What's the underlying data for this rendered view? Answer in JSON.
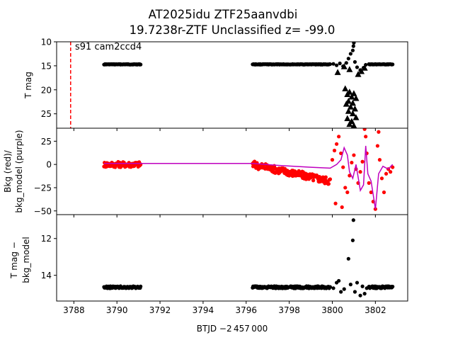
{
  "figure": {
    "title_line1": "AT2025idu  ZTF25aanvdbi",
    "title_line2": "19.7238r-ZTF Unclassified z= -99.0"
  },
  "chart_data": [
    {
      "type": "scatter",
      "panel": "top",
      "ylabel": "T mag",
      "y_inverted": true,
      "xlim": [
        3787.2,
        3803.5
      ],
      "ylim": [
        28,
        10
      ],
      "yticks": [
        "10",
        "15",
        "20",
        "25"
      ],
      "annotation": "s91 cam2ccd4",
      "vline": {
        "x": 3787.85,
        "color": "#ff0000",
        "style": "dashed"
      },
      "series": [
        {
          "marker": "circle",
          "color": "#000000",
          "segments": [
            {
              "x_start": 3789.4,
              "x_end": 3791.1,
              "y": 14.7
            },
            {
              "x_start": 3796.3,
              "x_end": 3799.9,
              "y": 14.7
            },
            {
              "x_start": 3801.7,
              "x_end": 3802.8,
              "y": 14.7
            }
          ],
          "points": [
            {
              "x": 3800.05,
              "y": 14.6
            },
            {
              "x": 3800.2,
              "y": 14.9
            },
            {
              "x": 3800.35,
              "y": 14.5
            },
            {
              "x": 3800.5,
              "y": 15.1
            },
            {
              "x": 3800.65,
              "y": 14.4
            },
            {
              "x": 3800.75,
              "y": 13.5
            },
            {
              "x": 3800.85,
              "y": 12.5
            },
            {
              "x": 3800.95,
              "y": 11.8
            },
            {
              "x": 3800.98,
              "y": 10.9
            },
            {
              "x": 3801.0,
              "y": 10.2
            },
            {
              "x": 3801.05,
              "y": 14.2
            },
            {
              "x": 3801.15,
              "y": 15.3
            },
            {
              "x": 3801.3,
              "y": 15.9
            },
            {
              "x": 3801.45,
              "y": 15.4
            },
            {
              "x": 3801.55,
              "y": 14.8
            }
          ]
        },
        {
          "marker": "triangle",
          "color": "#000000",
          "points": [
            {
              "x": 3800.25,
              "y": 16.4
            },
            {
              "x": 3800.55,
              "y": 15.2
            },
            {
              "x": 3800.8,
              "y": 15.8
            },
            {
              "x": 3801.2,
              "y": 16.8
            },
            {
              "x": 3801.35,
              "y": 16.2
            },
            {
              "x": 3801.5,
              "y": 15.5
            },
            {
              "x": 3800.6,
              "y": 19.8
            },
            {
              "x": 3800.7,
              "y": 21.0
            },
            {
              "x": 3800.8,
              "y": 20.5
            },
            {
              "x": 3800.9,
              "y": 21.5
            },
            {
              "x": 3801.0,
              "y": 20.8
            },
            {
              "x": 3801.1,
              "y": 21.8
            },
            {
              "x": 3800.65,
              "y": 23.0
            },
            {
              "x": 3800.75,
              "y": 24.5
            },
            {
              "x": 3800.85,
              "y": 23.6
            },
            {
              "x": 3800.95,
              "y": 25.0
            },
            {
              "x": 3801.05,
              "y": 24.0
            },
            {
              "x": 3800.7,
              "y": 26.0
            },
            {
              "x": 3800.8,
              "y": 27.2
            },
            {
              "x": 3800.9,
              "y": 26.6
            },
            {
              "x": 3801.0,
              "y": 27.5
            },
            {
              "x": 3800.75,
              "y": 22.4
            },
            {
              "x": 3800.95,
              "y": 22.8
            },
            {
              "x": 3801.1,
              "y": 25.8
            }
          ]
        }
      ]
    },
    {
      "type": "scatter",
      "panel": "middle",
      "ylabel_line1": "Bkg (red)/",
      "ylabel_line2": "bkg_model (purple)",
      "xlim": [
        3787.2,
        3803.5
      ],
      "ylim": [
        -54,
        39
      ],
      "yticks": [
        "25",
        "0",
        "−25",
        "−50"
      ],
      "series": [
        {
          "name": "Bkg",
          "marker": "circle",
          "color": "#ff0000",
          "segments": [
            {
              "x_start": 3789.4,
              "x_end": 3791.1,
              "y_center": 0,
              "spread": 6
            },
            {
              "x_start": 3796.3,
              "x_end": 3799.9,
              "y_start": 0,
              "y_end": -18,
              "spread": 8
            }
          ],
          "points": [
            {
              "x": 3800.0,
              "y": 5
            },
            {
              "x": 3800.1,
              "y": 15
            },
            {
              "x": 3800.2,
              "y": 22
            },
            {
              "x": 3800.3,
              "y": 30
            },
            {
              "x": 3800.4,
              "y": 12
            },
            {
              "x": 3800.5,
              "y": -3
            },
            {
              "x": 3800.6,
              "y": -25
            },
            {
              "x": 3800.7,
              "y": -30
            },
            {
              "x": 3800.8,
              "y": -12
            },
            {
              "x": 3800.9,
              "y": 2
            },
            {
              "x": 3801.0,
              "y": 10
            },
            {
              "x": 3801.1,
              "y": -5
            },
            {
              "x": 3801.2,
              "y": -20
            },
            {
              "x": 3801.3,
              "y": -8
            },
            {
              "x": 3801.4,
              "y": 3
            },
            {
              "x": 3801.5,
              "y": 38
            },
            {
              "x": 3801.55,
              "y": 30
            },
            {
              "x": 3801.6,
              "y": 12
            },
            {
              "x": 3801.7,
              "y": -20
            },
            {
              "x": 3801.8,
              "y": -30
            },
            {
              "x": 3801.9,
              "y": -40
            },
            {
              "x": 3802.0,
              "y": -48
            },
            {
              "x": 3802.1,
              "y": 20
            },
            {
              "x": 3802.15,
              "y": 35
            },
            {
              "x": 3802.2,
              "y": 5
            },
            {
              "x": 3802.3,
              "y": -15
            },
            {
              "x": 3802.4,
              "y": -30
            },
            {
              "x": 3802.5,
              "y": -10
            },
            {
              "x": 3802.6,
              "y": -5
            },
            {
              "x": 3802.7,
              "y": -8
            },
            {
              "x": 3802.8,
              "y": -3
            },
            {
              "x": 3800.15,
              "y": -42
            },
            {
              "x": 3800.45,
              "y": -46
            }
          ]
        },
        {
          "name": "bkg_model",
          "type": "line",
          "color": "#bf00bf",
          "points": [
            {
              "x": 3789.4,
              "y": 1
            },
            {
              "x": 3796.3,
              "y": 1
            },
            {
              "x": 3797.5,
              "y": -1
            },
            {
              "x": 3799.0,
              "y": -3
            },
            {
              "x": 3799.9,
              "y": -4
            },
            {
              "x": 3800.2,
              "y": 0
            },
            {
              "x": 3800.4,
              "y": 5
            },
            {
              "x": 3800.55,
              "y": 18
            },
            {
              "x": 3800.7,
              "y": 10
            },
            {
              "x": 3800.8,
              "y": -8
            },
            {
              "x": 3800.95,
              "y": -15
            },
            {
              "x": 3801.1,
              "y": 0
            },
            {
              "x": 3801.3,
              "y": -28
            },
            {
              "x": 3801.45,
              "y": -22
            },
            {
              "x": 3801.55,
              "y": 20
            },
            {
              "x": 3801.65,
              "y": -10
            },
            {
              "x": 3801.8,
              "y": -18
            },
            {
              "x": 3802.0,
              "y": -48
            },
            {
              "x": 3802.15,
              "y": -10
            },
            {
              "x": 3802.35,
              "y": -2
            },
            {
              "x": 3802.6,
              "y": -5
            },
            {
              "x": 3802.8,
              "y": 0
            }
          ]
        }
      ]
    },
    {
      "type": "scatter",
      "panel": "bottom",
      "ylabel_line1": "T mag −",
      "ylabel_line2": "bkg_model",
      "y_inverted": true,
      "xlim": [
        3787.2,
        3803.5
      ],
      "ylim": [
        15.4,
        10.7
      ],
      "yticks": [
        "12",
        "14"
      ],
      "xticks": [
        "3788",
        "3790",
        "3792",
        "3794",
        "3796",
        "3798",
        "3800",
        "3802"
      ],
      "xlabel": "BTJD −2 457 000",
      "series": [
        {
          "marker": "circle",
          "color": "#000000",
          "segments": [
            {
              "x_start": 3789.4,
              "x_end": 3791.1,
              "y": 14.65
            },
            {
              "x_start": 3796.3,
              "x_end": 3799.9,
              "y": 14.65
            },
            {
              "x_start": 3801.7,
              "x_end": 3802.8,
              "y": 14.65
            }
          ],
          "points": [
            {
              "x": 3800.05,
              "y": 14.7
            },
            {
              "x": 3800.2,
              "y": 14.4
            },
            {
              "x": 3800.3,
              "y": 14.3
            },
            {
              "x": 3800.4,
              "y": 14.9
            },
            {
              "x": 3800.55,
              "y": 14.75
            },
            {
              "x": 3800.75,
              "y": 13.1
            },
            {
              "x": 3800.85,
              "y": 14.5
            },
            {
              "x": 3800.95,
              "y": 12.1
            },
            {
              "x": 3800.98,
              "y": 11.0
            },
            {
              "x": 3801.05,
              "y": 14.9
            },
            {
              "x": 3801.15,
              "y": 14.4
            },
            {
              "x": 3801.3,
              "y": 15.1
            },
            {
              "x": 3801.4,
              "y": 14.6
            },
            {
              "x": 3801.5,
              "y": 15.0
            },
            {
              "x": 3801.6,
              "y": 14.7
            }
          ]
        }
      ]
    }
  ]
}
